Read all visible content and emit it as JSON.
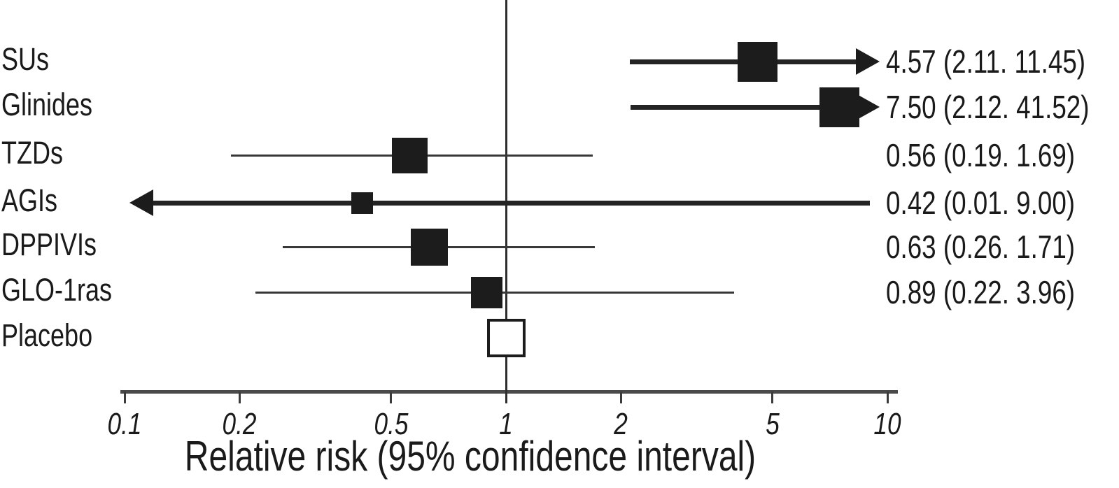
{
  "chart_data": {
    "type": "forest",
    "title": "",
    "xlabel": "Relative risk (95% confidence interval)",
    "x_scale": "log",
    "xlim": [
      0.1,
      10
    ],
    "x_ticks": [
      0.1,
      0.2,
      0.5,
      1,
      2,
      5,
      10
    ],
    "x_tick_labels": [
      "0.1",
      "0.2",
      "0.5",
      "1",
      "2",
      "5",
      "10"
    ],
    "reference_line": 1,
    "rows": [
      {
        "label": "SUs",
        "estimate": 4.57,
        "ci_low": 2.11,
        "ci_high": 11.45,
        "value_text": "4.57 (2.11. 11.45)",
        "marker": "filled",
        "marker_size": 57,
        "line_weight": "thick"
      },
      {
        "label": "Glinides",
        "estimate": 7.5,
        "ci_low": 2.12,
        "ci_high": 41.52,
        "value_text": "7.50 (2.12. 41.52)",
        "marker": "filled",
        "marker_size": 57,
        "line_weight": "thick"
      },
      {
        "label": "TZDs",
        "estimate": 0.56,
        "ci_low": 0.19,
        "ci_high": 1.69,
        "value_text": "0.56 (0.19. 1.69)",
        "marker": "filled",
        "marker_size": 51,
        "line_weight": "thin"
      },
      {
        "label": "AGIs",
        "estimate": 0.42,
        "ci_low": 0.01,
        "ci_high": 9.0,
        "value_text": "0.42 (0.01. 9.00)",
        "marker": "filled",
        "marker_size": 31,
        "line_weight": "thick"
      },
      {
        "label": "DPPIVIs",
        "estimate": 0.63,
        "ci_low": 0.26,
        "ci_high": 1.71,
        "value_text": "0.63 (0.26. 1.71)",
        "marker": "filled",
        "marker_size": 53,
        "line_weight": "thin"
      },
      {
        "label": "GLO-1ras",
        "estimate": 0.89,
        "ci_low": 0.22,
        "ci_high": 3.96,
        "value_text": "0.89 (0.22. 3.96)",
        "marker": "filled",
        "marker_size": 45,
        "line_weight": "thin"
      },
      {
        "label": "Placebo",
        "estimate": 1.0,
        "ci_low": null,
        "ci_high": null,
        "value_text": "",
        "marker": "open",
        "marker_size": 55,
        "line_weight": "none"
      }
    ]
  },
  "colors": {
    "marker": "#1c1c1c",
    "thick_line": "#242424",
    "thin_line": "#383838",
    "axis": "#4a4a4a",
    "reference_line": "#2e2e2e",
    "text": "#1a1a1a",
    "background": "#ffffff"
  }
}
